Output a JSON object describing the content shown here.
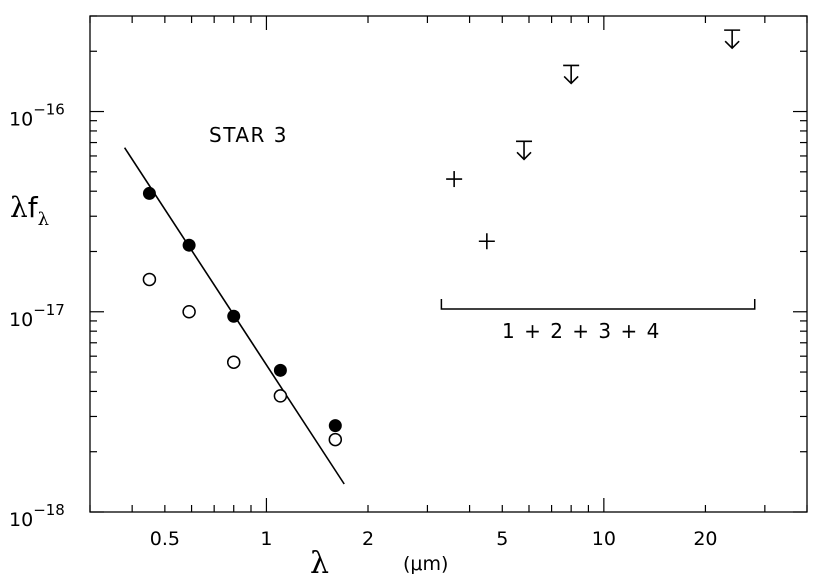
{
  "chart_data": {
    "type": "scatter",
    "title": "",
    "xlabel": {
      "symbol": "λ",
      "unit": "(μm)"
    },
    "ylabel": {
      "symbol": "λ",
      "sub": "λ",
      "letter": "f"
    },
    "xscale": "log",
    "yscale": "log",
    "xlim": [
      0.3,
      40
    ],
    "ylim": [
      1e-18,
      3e-16
    ],
    "x_ticks": [
      {
        "value": 0.5,
        "label": "0.5"
      },
      {
        "value": 1,
        "label": "1"
      },
      {
        "value": 2,
        "label": "2"
      },
      {
        "value": 5,
        "label": "5"
      },
      {
        "value": 10,
        "label": "10"
      },
      {
        "value": 20,
        "label": "20"
      }
    ],
    "y_ticks": [
      {
        "value": 1e-16,
        "base": "10",
        "exp": "−16"
      },
      {
        "value": 1e-17,
        "base": "10",
        "exp": "−17"
      },
      {
        "value": 1e-18,
        "base": "10",
        "exp": "−18"
      }
    ],
    "grid": false,
    "annotations": {
      "star_label": "STAR 3",
      "bracket_label": "1 + 2 + 3 + 4",
      "bracket_range": [
        3.3,
        28
      ]
    },
    "series": [
      {
        "marker": "filled-circle",
        "x": [
          0.45,
          0.59,
          0.8,
          1.1,
          1.6
        ],
        "y": [
          3.9e-17,
          2.15e-17,
          9.5e-18,
          5.1e-18,
          2.7e-18
        ]
      },
      {
        "marker": "open-circle",
        "x": [
          0.45,
          0.59,
          0.8,
          1.1,
          1.6
        ],
        "y": [
          1.45e-17,
          1e-17,
          5.6e-18,
          3.8e-18,
          2.3e-18
        ]
      },
      {
        "marker": "plus",
        "x": [
          3.6,
          4.5
        ],
        "y": [
          4.6e-17,
          2.25e-17
        ]
      },
      {
        "marker": "upper-limit",
        "x": [
          5.8,
          8.0,
          24
        ],
        "y": [
          7.1e-17,
          1.7e-16,
          2.55e-16
        ]
      },
      {
        "marker": "line",
        "x": [
          0.38,
          1.7
        ],
        "y": [
          6.6e-17,
          1.38e-18
        ]
      }
    ]
  }
}
